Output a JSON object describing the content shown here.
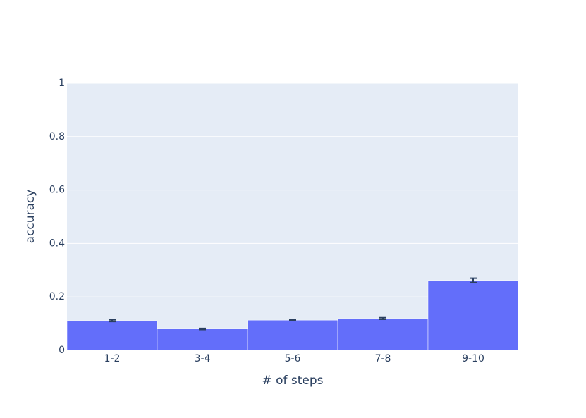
{
  "chart_data": {
    "type": "bar",
    "x_label": "# of steps",
    "y_label": "accuracy",
    "categories": [
      "1-2",
      "3-4",
      "5-6",
      "7-8",
      "9-10"
    ],
    "values": [
      0.111,
      0.08,
      0.113,
      0.119,
      0.262
    ],
    "errors": [
      0.003,
      0.002,
      0.002,
      0.003,
      0.008
    ],
    "color": "#636efa",
    "error_color": "#2a3f5f",
    "ylim": [
      0,
      1
    ],
    "yticks": [
      0,
      0.2,
      0.4,
      0.6,
      0.8,
      1
    ],
    "grid": true
  }
}
